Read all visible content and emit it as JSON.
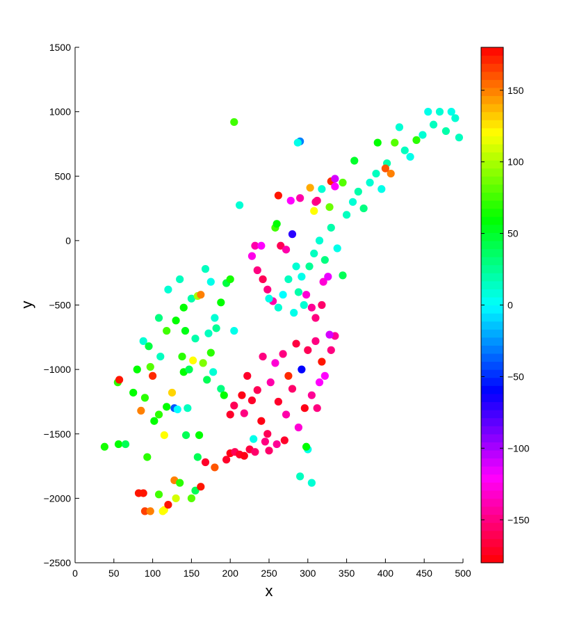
{
  "chart_data": {
    "type": "scatter",
    "title": "",
    "xlabel": "x",
    "ylabel": "y",
    "xlim": [
      0,
      500
    ],
    "ylim": [
      -2500,
      1500
    ],
    "xticks": [
      0,
      50,
      100,
      150,
      200,
      250,
      300,
      350,
      400,
      450,
      500
    ],
    "yticks": [
      -2500,
      -2000,
      -1500,
      -1000,
      -500,
      0,
      500,
      1000,
      1500
    ],
    "yticklabels": [
      "−2500",
      "−2000",
      "−1500",
      "−1000",
      "−500",
      "0",
      "500",
      "1000",
      "1500"
    ],
    "grid": false,
    "colorbar": {
      "colormap": "hsv",
      "range": [
        -180,
        180
      ],
      "levels": 64,
      "ticks": [
        150,
        100,
        50,
        0,
        -50,
        -100,
        -150
      ],
      "ticklabels": [
        "150",
        "100",
        "50",
        "0",
        "−50",
        "−100",
        "−150"
      ]
    },
    "clusters": [
      {
        "region": "upper-right band",
        "x_range": [
          300,
          495
        ],
        "y_range": [
          -300,
          1000
        ],
        "dominant_color_value": 10
      },
      {
        "region": "left cluster",
        "x_range": [
          40,
          220
        ],
        "y_range": [
          -2100,
          -200
        ],
        "dominant_color_value": 60
      },
      {
        "region": "center-lower cluster",
        "x_range": [
          180,
          340
        ],
        "y_range": [
          -1770,
          -500
        ],
        "dominant_color_value": -155
      },
      {
        "region": "center-middle cluster",
        "x_range": [
          220,
          330
        ],
        "y_range": [
          -700,
          100
        ],
        "dominant_color_value": 0
      }
    ],
    "points": [
      {
        "x": 205,
        "y": 920,
        "c": 75
      },
      {
        "x": 212,
        "y": 275,
        "c": 10
      },
      {
        "x": 290,
        "y": 770,
        "c": -30
      },
      {
        "x": 287,
        "y": 760,
        "c": 5
      },
      {
        "x": 38,
        "y": -1600,
        "c": 65
      },
      {
        "x": 56,
        "y": -1580,
        "c": 60
      },
      {
        "x": 65,
        "y": -1580,
        "c": 40
      },
      {
        "x": 93,
        "y": -1680,
        "c": 70
      },
      {
        "x": 82,
        "y": -1960,
        "c": 175
      },
      {
        "x": 88,
        "y": -1960,
        "c": 175
      },
      {
        "x": 90,
        "y": -2100,
        "c": 165
      },
      {
        "x": 97,
        "y": -2100,
        "c": 150
      },
      {
        "x": 108,
        "y": -1970,
        "c": 75
      },
      {
        "x": 113,
        "y": -2100,
        "c": 120
      },
      {
        "x": 115,
        "y": -2090,
        "c": 120
      },
      {
        "x": 120,
        "y": -2050,
        "c": 175
      },
      {
        "x": 128,
        "y": -1860,
        "c": 150
      },
      {
        "x": 130,
        "y": -2000,
        "c": 110
      },
      {
        "x": 135,
        "y": -1880,
        "c": 70
      },
      {
        "x": 150,
        "y": -2000,
        "c": 80
      },
      {
        "x": 155,
        "y": -1940,
        "c": 40
      },
      {
        "x": 162,
        "y": -1910,
        "c": 175
      },
      {
        "x": 168,
        "y": -1720,
        "c": -170
      },
      {
        "x": 180,
        "y": -1760,
        "c": 160
      },
      {
        "x": 115,
        "y": -1510,
        "c": 120
      },
      {
        "x": 143,
        "y": -1510,
        "c": 40
      },
      {
        "x": 160,
        "y": -1510,
        "c": 60
      },
      {
        "x": 158,
        "y": -1680,
        "c": 40
      },
      {
        "x": 55,
        "y": -1100,
        "c": 70
      },
      {
        "x": 57,
        "y": -1080,
        "c": 175
      },
      {
        "x": 75,
        "y": -1180,
        "c": 60
      },
      {
        "x": 80,
        "y": -1000,
        "c": 60
      },
      {
        "x": 85,
        "y": -1320,
        "c": 150
      },
      {
        "x": 90,
        "y": -1220,
        "c": 70
      },
      {
        "x": 97,
        "y": -980,
        "c": 80
      },
      {
        "x": 100,
        "y": -1050,
        "c": 170
      },
      {
        "x": 102,
        "y": -1400,
        "c": 60
      },
      {
        "x": 108,
        "y": -1350,
        "c": 70
      },
      {
        "x": 118,
        "y": -1290,
        "c": 60
      },
      {
        "x": 125,
        "y": -1180,
        "c": 130
      },
      {
        "x": 128,
        "y": -1300,
        "c": -40
      },
      {
        "x": 132,
        "y": -1310,
        "c": 0
      },
      {
        "x": 140,
        "y": -1020,
        "c": 60
      },
      {
        "x": 147,
        "y": -1000,
        "c": 40
      },
      {
        "x": 152,
        "y": -930,
        "c": 120
      },
      {
        "x": 165,
        "y": -950,
        "c": 90
      },
      {
        "x": 170,
        "y": -1080,
        "c": 40
      },
      {
        "x": 175,
        "y": -870,
        "c": 70
      },
      {
        "x": 188,
        "y": -1150,
        "c": 30
      },
      {
        "x": 192,
        "y": -1200,
        "c": 60
      },
      {
        "x": 120,
        "y": -380,
        "c": 10
      },
      {
        "x": 135,
        "y": -300,
        "c": 15
      },
      {
        "x": 140,
        "y": -520,
        "c": 60
      },
      {
        "x": 150,
        "y": -450,
        "c": 20
      },
      {
        "x": 158,
        "y": -430,
        "c": 100
      },
      {
        "x": 162,
        "y": -420,
        "c": 150
      },
      {
        "x": 168,
        "y": -220,
        "c": 15
      },
      {
        "x": 175,
        "y": -320,
        "c": 5
      },
      {
        "x": 180,
        "y": -600,
        "c": 10
      },
      {
        "x": 188,
        "y": -480,
        "c": 60
      },
      {
        "x": 195,
        "y": -330,
        "c": 45
      },
      {
        "x": 200,
        "y": -300,
        "c": 65
      },
      {
        "x": 108,
        "y": -600,
        "c": 30
      },
      {
        "x": 118,
        "y": -700,
        "c": 75
      },
      {
        "x": 130,
        "y": -620,
        "c": 60
      },
      {
        "x": 142,
        "y": -700,
        "c": 55
      },
      {
        "x": 155,
        "y": -760,
        "c": 20
      },
      {
        "x": 172,
        "y": -720,
        "c": 15
      },
      {
        "x": 182,
        "y": -680,
        "c": 25
      },
      {
        "x": 205,
        "y": -700,
        "c": 5
      },
      {
        "x": 88,
        "y": -780,
        "c": 10
      },
      {
        "x": 95,
        "y": -820,
        "c": 45
      },
      {
        "x": 110,
        "y": -900,
        "c": 15
      },
      {
        "x": 138,
        "y": -900,
        "c": 70
      },
      {
        "x": 145,
        "y": -1300,
        "c": 15
      },
      {
        "x": 178,
        "y": -1020,
        "c": 10
      },
      {
        "x": 230,
        "y": -1540,
        "c": 5
      },
      {
        "x": 270,
        "y": -1550,
        "c": -170
      },
      {
        "x": 290,
        "y": -1830,
        "c": 15
      },
      {
        "x": 305,
        "y": -1880,
        "c": 10
      },
      {
        "x": 300,
        "y": -1620,
        "c": 5
      },
      {
        "x": 298,
        "y": -1600,
        "c": 60
      },
      {
        "x": 195,
        "y": -1700,
        "c": -170
      },
      {
        "x": 200,
        "y": -1650,
        "c": -175
      },
      {
        "x": 206,
        "y": -1640,
        "c": -160
      },
      {
        "x": 212,
        "y": -1660,
        "c": -170
      },
      {
        "x": 218,
        "y": -1670,
        "c": -175
      },
      {
        "x": 225,
        "y": -1620,
        "c": -165
      },
      {
        "x": 232,
        "y": -1640,
        "c": -155
      },
      {
        "x": 245,
        "y": -1560,
        "c": -150
      },
      {
        "x": 250,
        "y": -1630,
        "c": -155
      },
      {
        "x": 260,
        "y": -1580,
        "c": -145
      },
      {
        "x": 200,
        "y": -1350,
        "c": -170
      },
      {
        "x": 205,
        "y": -1280,
        "c": -160
      },
      {
        "x": 215,
        "y": -1200,
        "c": -175
      },
      {
        "x": 218,
        "y": -1340,
        "c": -150
      },
      {
        "x": 222,
        "y": -1050,
        "c": -170
      },
      {
        "x": 228,
        "y": -1240,
        "c": -170
      },
      {
        "x": 235,
        "y": -1160,
        "c": -160
      },
      {
        "x": 240,
        "y": -1400,
        "c": -175
      },
      {
        "x": 242,
        "y": -900,
        "c": -150
      },
      {
        "x": 248,
        "y": -1500,
        "c": -160
      },
      {
        "x": 252,
        "y": -1100,
        "c": -140
      },
      {
        "x": 258,
        "y": -950,
        "c": -130
      },
      {
        "x": 262,
        "y": -1250,
        "c": -170
      },
      {
        "x": 268,
        "y": -880,
        "c": -150
      },
      {
        "x": 272,
        "y": -1350,
        "c": -140
      },
      {
        "x": 275,
        "y": -1050,
        "c": 170
      },
      {
        "x": 280,
        "y": -1150,
        "c": -155
      },
      {
        "x": 285,
        "y": -800,
        "c": -165
      },
      {
        "x": 288,
        "y": -1450,
        "c": -130
      },
      {
        "x": 292,
        "y": -1000,
        "c": -60
      },
      {
        "x": 296,
        "y": -1300,
        "c": -175
      },
      {
        "x": 300,
        "y": -850,
        "c": -160
      },
      {
        "x": 305,
        "y": -1200,
        "c": -145
      },
      {
        "x": 310,
        "y": -780,
        "c": -150
      },
      {
        "x": 315,
        "y": -1100,
        "c": -120
      },
      {
        "x": 318,
        "y": -940,
        "c": 175
      },
      {
        "x": 322,
        "y": -1050,
        "c": -120
      },
      {
        "x": 330,
        "y": -850,
        "c": -150
      },
      {
        "x": 335,
        "y": -740,
        "c": -145
      },
      {
        "x": 328,
        "y": -730,
        "c": -110
      },
      {
        "x": 312,
        "y": -1300,
        "c": -150
      },
      {
        "x": 232,
        "y": -40,
        "c": -140
      },
      {
        "x": 240,
        "y": -40,
        "c": -120
      },
      {
        "x": 228,
        "y": -120,
        "c": -125
      },
      {
        "x": 235,
        "y": -230,
        "c": -150
      },
      {
        "x": 242,
        "y": -300,
        "c": -160
      },
      {
        "x": 248,
        "y": -380,
        "c": -150
      },
      {
        "x": 255,
        "y": -470,
        "c": -140
      },
      {
        "x": 258,
        "y": 100,
        "c": 75
      },
      {
        "x": 260,
        "y": 130,
        "c": 60
      },
      {
        "x": 265,
        "y": -40,
        "c": -160
      },
      {
        "x": 272,
        "y": -70,
        "c": -140
      },
      {
        "x": 280,
        "y": 50,
        "c": -70
      },
      {
        "x": 285,
        "y": -200,
        "c": 10
      },
      {
        "x": 292,
        "y": -280,
        "c": 5
      },
      {
        "x": 298,
        "y": -420,
        "c": -130
      },
      {
        "x": 305,
        "y": -520,
        "c": -145
      },
      {
        "x": 310,
        "y": -600,
        "c": -150
      },
      {
        "x": 318,
        "y": -500,
        "c": -155
      },
      {
        "x": 320,
        "y": -320,
        "c": -130
      },
      {
        "x": 326,
        "y": -280,
        "c": -115
      },
      {
        "x": 262,
        "y": 350,
        "c": 175
      },
      {
        "x": 278,
        "y": 310,
        "c": -120
      },
      {
        "x": 290,
        "y": 330,
        "c": -140
      },
      {
        "x": 303,
        "y": 410,
        "c": 140
      },
      {
        "x": 310,
        "y": 300,
        "c": -145
      },
      {
        "x": 312,
        "y": 310,
        "c": -150
      },
      {
        "x": 318,
        "y": 400,
        "c": 10
      },
      {
        "x": 330,
        "y": 460,
        "c": 170
      },
      {
        "x": 335,
        "y": 420,
        "c": -120
      },
      {
        "x": 335,
        "y": 480,
        "c": -110
      },
      {
        "x": 308,
        "y": 230,
        "c": 120
      },
      {
        "x": 250,
        "y": -450,
        "c": 5
      },
      {
        "x": 262,
        "y": -520,
        "c": 10
      },
      {
        "x": 268,
        "y": -420,
        "c": 0
      },
      {
        "x": 275,
        "y": -300,
        "c": 15
      },
      {
        "x": 282,
        "y": -560,
        "c": 5
      },
      {
        "x": 288,
        "y": -400,
        "c": 20
      },
      {
        "x": 295,
        "y": -500,
        "c": 10
      },
      {
        "x": 302,
        "y": -200,
        "c": 25
      },
      {
        "x": 308,
        "y": -100,
        "c": 15
      },
      {
        "x": 315,
        "y": 0,
        "c": 10
      },
      {
        "x": 322,
        "y": -150,
        "c": 30
      },
      {
        "x": 330,
        "y": 100,
        "c": 20
      },
      {
        "x": 338,
        "y": -60,
        "c": 5
      },
      {
        "x": 345,
        "y": -270,
        "c": 40
      },
      {
        "x": 350,
        "y": 200,
        "c": 15
      },
      {
        "x": 358,
        "y": 300,
        "c": 10
      },
      {
        "x": 365,
        "y": 380,
        "c": 20
      },
      {
        "x": 372,
        "y": 250,
        "c": 30
      },
      {
        "x": 380,
        "y": 450,
        "c": 10
      },
      {
        "x": 388,
        "y": 520,
        "c": 15
      },
      {
        "x": 395,
        "y": 400,
        "c": 5
      },
      {
        "x": 402,
        "y": 600,
        "c": 20
      },
      {
        "x": 407,
        "y": 520,
        "c": 150
      },
      {
        "x": 412,
        "y": 760,
        "c": 80
      },
      {
        "x": 418,
        "y": 880,
        "c": 10
      },
      {
        "x": 425,
        "y": 700,
        "c": 15
      },
      {
        "x": 432,
        "y": 650,
        "c": 5
      },
      {
        "x": 440,
        "y": 780,
        "c": 70
      },
      {
        "x": 448,
        "y": 820,
        "c": 10
      },
      {
        "x": 455,
        "y": 1000,
        "c": 5
      },
      {
        "x": 462,
        "y": 900,
        "c": 15
      },
      {
        "x": 470,
        "y": 1000,
        "c": 10
      },
      {
        "x": 478,
        "y": 850,
        "c": 20
      },
      {
        "x": 485,
        "y": 1000,
        "c": 5
      },
      {
        "x": 490,
        "y": 950,
        "c": 10
      },
      {
        "x": 495,
        "y": 800,
        "c": 15
      },
      {
        "x": 400,
        "y": 560,
        "c": 160
      },
      {
        "x": 390,
        "y": 760,
        "c": 60
      },
      {
        "x": 360,
        "y": 620,
        "c": 50
      },
      {
        "x": 345,
        "y": 450,
        "c": 80
      },
      {
        "x": 328,
        "y": 260,
        "c": 85
      }
    ]
  }
}
